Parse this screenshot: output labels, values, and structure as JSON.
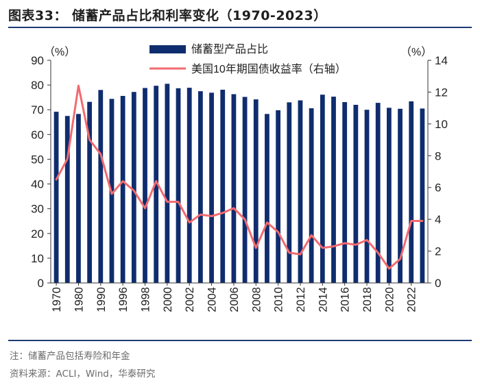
{
  "header": {
    "title": "图表33：  储蓄产品占比和利率变化（1970-2023）"
  },
  "footer": {
    "note": "注：储蓄产品包括寿险和年金",
    "source": "资料来源：ACLI，Wind，华泰研究"
  },
  "colors": {
    "bar": "#0f2d6e",
    "line": "#f26a6e",
    "rule": "#1c3a73"
  },
  "chart_data": {
    "type": "bar+line",
    "title": "储蓄产品占比和利率变化（1970-2023）",
    "left_axis": {
      "unit": "（%）",
      "min": 0,
      "max": 90,
      "ticks": [
        0,
        10,
        20,
        30,
        40,
        50,
        60,
        70,
        80,
        90
      ]
    },
    "right_axis": {
      "unit": "（%）",
      "min": 0,
      "max": 14,
      "ticks": [
        0,
        2,
        4,
        6,
        8,
        10,
        12,
        14
      ]
    },
    "x_tick_labels": [
      "1970",
      "1980",
      "1990",
      "1996",
      "1998",
      "2000",
      "2002",
      "2004",
      "2006",
      "2008",
      "2010",
      "2012",
      "2014",
      "2016",
      "2018",
      "2020",
      "2022"
    ],
    "categories": [
      "1970",
      "1975",
      "1980",
      "1985",
      "1990",
      "1995",
      "1996",
      "1997",
      "1998",
      "1999",
      "2000",
      "2001",
      "2002",
      "2003",
      "2004",
      "2005",
      "2006",
      "2007",
      "2008",
      "2009",
      "2010",
      "2011",
      "2012",
      "2013",
      "2014",
      "2015",
      "2016",
      "2017",
      "2018",
      "2019",
      "2020",
      "2021",
      "2022",
      "2023"
    ],
    "series": [
      {
        "name": "储蓄型产品占比",
        "axis": "left",
        "kind": "bar",
        "values": [
          69.2,
          67.5,
          68.3,
          73.2,
          78.0,
          74.4,
          75.6,
          77.2,
          78.8,
          79.7,
          80.5,
          78.7,
          78.9,
          77.5,
          76.9,
          78.1,
          76.3,
          75.2,
          74.2,
          68.3,
          69.8,
          73.0,
          73.8,
          70.6,
          76.1,
          75.3,
          73.1,
          72.0,
          70.0,
          72.8,
          70.8,
          70.4,
          73.4,
          70.5
        ]
      },
      {
        "name": "美国10年期国债收益率（右轴）",
        "axis": "right",
        "kind": "line",
        "values": [
          6.5,
          7.8,
          12.4,
          9.0,
          8.1,
          5.6,
          6.4,
          5.8,
          4.7,
          6.4,
          5.1,
          5.1,
          3.8,
          4.3,
          4.2,
          4.4,
          4.7,
          4.0,
          2.2,
          3.8,
          3.2,
          1.9,
          1.8,
          3.0,
          2.2,
          2.3,
          2.5,
          2.4,
          2.7,
          1.9,
          0.9,
          1.5,
          3.9,
          3.9
        ]
      }
    ]
  }
}
